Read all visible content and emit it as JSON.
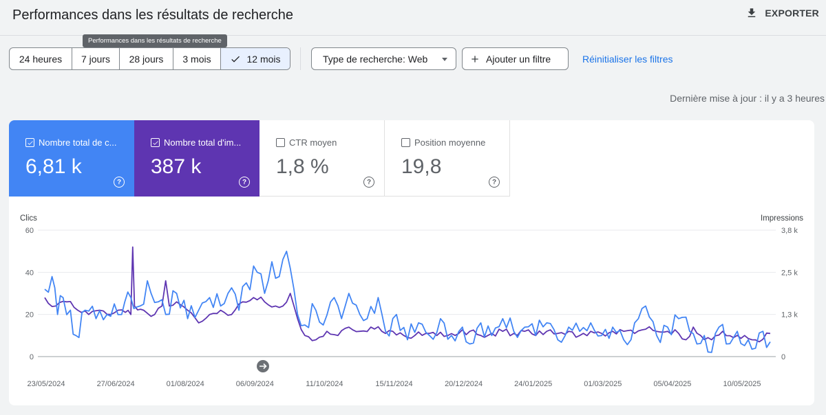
{
  "header": {
    "title": "Performances dans les résultats de recherche",
    "export_label": "EXPORTER"
  },
  "tooltip": "Performances dans les résultats de recherche",
  "date_ranges": [
    {
      "label": "24 heures",
      "selected": false
    },
    {
      "label": "7 jours",
      "selected": false
    },
    {
      "label": "28 jours",
      "selected": false
    },
    {
      "label": "3 mois",
      "selected": false
    },
    {
      "label": "12 mois",
      "selected": true
    }
  ],
  "filters": {
    "search_type_label": "Type de recherche: Web",
    "add_filter_label": "Ajouter un filtre",
    "reset_label": "Réinitialiser les filtres"
  },
  "last_update": "Dernière mise à jour : il y a 3 heures",
  "metrics": [
    {
      "label": "Nombre total de c...",
      "value": "6,81 k",
      "checked": true,
      "color": "#4285f4"
    },
    {
      "label": "Nombre total d'im...",
      "value": "387 k",
      "checked": true,
      "color": "#5e35b1"
    },
    {
      "label": "CTR moyen",
      "value": "1,8 %",
      "checked": false,
      "color": "#ffffff"
    },
    {
      "label": "Position moyenne",
      "value": "19,8",
      "checked": false,
      "color": "#ffffff"
    }
  ],
  "chart_data": {
    "type": "line",
    "x_ticks": [
      "23/05/2024",
      "27/06/2024",
      "01/08/2024",
      "06/09/2024",
      "11/10/2024",
      "15/11/2024",
      "20/12/2024",
      "24/01/2025",
      "01/03/2025",
      "05/04/2025",
      "10/05/2025"
    ],
    "left_axis": {
      "title": "Clics",
      "ticks": [
        "60",
        "40",
        "20",
        "0"
      ],
      "range": [
        0,
        60
      ]
    },
    "right_axis": {
      "title": "Impressions",
      "ticks": [
        "3,8 k",
        "2,5 k",
        "1,3 k",
        "0"
      ],
      "range": [
        0,
        3800
      ]
    },
    "series": [
      {
        "name": "Nombre total de clics",
        "color": "#4285f4",
        "axis": "left",
        "anchors": [
          [
            0,
            32
          ],
          [
            4,
            38
          ],
          [
            7,
            20
          ],
          [
            10,
            28
          ],
          [
            14,
            22
          ],
          [
            17,
            10
          ],
          [
            22,
            22
          ],
          [
            28,
            18
          ],
          [
            34,
            20
          ],
          [
            38,
            25
          ],
          [
            42,
            20
          ],
          [
            47,
            28
          ],
          [
            52,
            24
          ],
          [
            56,
            36
          ],
          [
            62,
            26
          ],
          [
            66,
            20
          ],
          [
            72,
            30
          ],
          [
            78,
            18
          ],
          [
            84,
            22
          ],
          [
            90,
            28
          ],
          [
            96,
            24
          ],
          [
            100,
            30
          ],
          [
            106,
            22
          ],
          [
            110,
            35
          ],
          [
            116,
            40
          ],
          [
            120,
            30
          ],
          [
            124,
            45
          ],
          [
            128,
            38
          ],
          [
            132,
            50
          ],
          [
            136,
            32
          ],
          [
            138,
            20
          ],
          [
            142,
            15
          ],
          [
            148,
            22
          ],
          [
            152,
            15
          ],
          [
            158,
            28
          ],
          [
            162,
            18
          ],
          [
            166,
            30
          ],
          [
            172,
            20
          ],
          [
            176,
            18
          ],
          [
            182,
            28
          ],
          [
            186,
            12
          ],
          [
            192,
            20
          ],
          [
            198,
            8
          ],
          [
            204,
            16
          ],
          [
            210,
            10
          ],
          [
            216,
            18
          ],
          [
            222,
            10
          ],
          [
            228,
            14
          ],
          [
            232,
            6
          ],
          [
            238,
            16
          ],
          [
            244,
            10
          ],
          [
            250,
            18
          ],
          [
            256,
            12
          ],
          [
            262,
            14
          ],
          [
            268,
            10
          ],
          [
            274,
            16
          ],
          [
            280,
            8
          ],
          [
            286,
            14
          ],
          [
            292,
            12
          ],
          [
            298,
            16
          ],
          [
            304,
            10
          ],
          [
            310,
            14
          ],
          [
            316,
            8
          ],
          [
            322,
            16
          ],
          [
            328,
            24
          ],
          [
            334,
            10
          ],
          [
            340,
            14
          ],
          [
            346,
            18
          ],
          [
            352,
            12
          ],
          [
            356,
            6
          ],
          [
            360,
            10
          ],
          [
            364,
            2
          ],
          [
            368,
            14
          ],
          [
            372,
            6
          ],
          [
            378,
            12
          ],
          [
            384,
            8
          ],
          [
            388,
            4
          ],
          [
            392,
            12
          ],
          [
            396,
            7
          ]
        ]
      },
      {
        "name": "Nombre total d'impressions",
        "color": "#5e35b1",
        "axis": "left",
        "anchors": [
          [
            0,
            28
          ],
          [
            6,
            24
          ],
          [
            12,
            26
          ],
          [
            18,
            22
          ],
          [
            24,
            20
          ],
          [
            30,
            22
          ],
          [
            36,
            20
          ],
          [
            40,
            22
          ],
          [
            44,
            21
          ],
          [
            47,
            20
          ],
          [
            48,
            52
          ],
          [
            49,
            24
          ],
          [
            54,
            22
          ],
          [
            60,
            20
          ],
          [
            64,
            24
          ],
          [
            66,
            36
          ],
          [
            68,
            24
          ],
          [
            72,
            26
          ],
          [
            78,
            22
          ],
          [
            84,
            16
          ],
          [
            90,
            20
          ],
          [
            96,
            22
          ],
          [
            102,
            20
          ],
          [
            108,
            26
          ],
          [
            114,
            28
          ],
          [
            120,
            26
          ],
          [
            126,
            24
          ],
          [
            130,
            24
          ],
          [
            134,
            30
          ],
          [
            138,
            18
          ],
          [
            142,
            10
          ],
          [
            148,
            8
          ],
          [
            154,
            12
          ],
          [
            160,
            10
          ],
          [
            166,
            14
          ],
          [
            172,
            12
          ],
          [
            178,
            14
          ],
          [
            184,
            12
          ],
          [
            190,
            12
          ],
          [
            196,
            10
          ],
          [
            202,
            10
          ],
          [
            208,
            11
          ],
          [
            214,
            10
          ],
          [
            220,
            10
          ],
          [
            226,
            11
          ],
          [
            232,
            12
          ],
          [
            238,
            10
          ],
          [
            244,
            11
          ],
          [
            250,
            12
          ],
          [
            256,
            11
          ],
          [
            262,
            12
          ],
          [
            268,
            10
          ],
          [
            274,
            12
          ],
          [
            280,
            11
          ],
          [
            286,
            12
          ],
          [
            292,
            10
          ],
          [
            298,
            12
          ],
          [
            304,
            11
          ],
          [
            310,
            12
          ],
          [
            316,
            12
          ],
          [
            322,
            11
          ],
          [
            328,
            13
          ],
          [
            334,
            12
          ],
          [
            340,
            12
          ],
          [
            346,
            11
          ],
          [
            350,
            8
          ],
          [
            354,
            14
          ],
          [
            358,
            10
          ],
          [
            364,
            8
          ],
          [
            370,
            12
          ],
          [
            376,
            9
          ],
          [
            382,
            10
          ],
          [
            386,
            8
          ],
          [
            390,
            7
          ],
          [
            396,
            11
          ]
        ]
      }
    ]
  }
}
